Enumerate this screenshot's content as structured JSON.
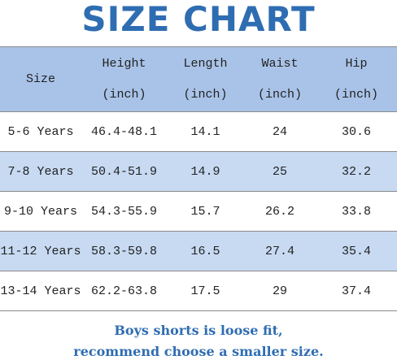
{
  "header": {
    "title": "SIZE CHART"
  },
  "table": {
    "columns": [
      [
        "Size"
      ],
      [
        "Height",
        "(inch)"
      ],
      [
        "Length",
        "(inch)"
      ],
      [
        "Waist",
        "(inch)"
      ],
      [
        "Hip",
        "(inch)"
      ]
    ],
    "rows": [
      [
        "5-6 Years",
        "46.4-48.1",
        "14.1",
        "24",
        "30.6"
      ],
      [
        "7-8 Years",
        "50.4-51.9",
        "14.9",
        "25",
        "32.2"
      ],
      [
        "9-10 Years",
        "54.3-55.9",
        "15.7",
        "26.2",
        "33.8"
      ],
      [
        "11-12 Years",
        "58.3-59.8",
        "16.5",
        "27.4",
        "35.4"
      ],
      [
        "13-14 Years",
        "62.2-63.8",
        "17.5",
        "29",
        "37.4"
      ]
    ]
  },
  "footer": {
    "lines": [
      "Boys shorts is loose fit,",
      "recommend choose a smaller size."
    ]
  }
}
